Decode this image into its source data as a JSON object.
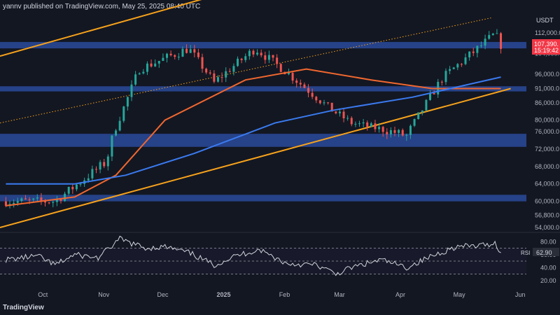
{
  "header": {
    "text": "yannv published on TradingView.com, May 25, 2025 08:40 UTC"
  },
  "footer": {
    "brand": "TradingView"
  },
  "colors": {
    "background": "#131722",
    "candle_up": "#26a69a",
    "candle_down": "#ef5350",
    "ema_orange": "#f0672f",
    "ema_blue": "#3a7af0",
    "trendline": "#f7a21b",
    "zone": "#2a4a9a",
    "rsi": "#d1d4dc",
    "price_label_bg": "#f23645"
  },
  "chart_data": [
    {
      "type": "candlestick",
      "title": "",
      "currency": "USDT",
      "x_labels": [
        "Oct",
        "Nov",
        "Dec",
        "2025",
        "Feb",
        "Mar",
        "Apr",
        "May",
        "Jun"
      ],
      "y_ticks": [
        112000,
        104000,
        96000,
        91000,
        86000,
        80000,
        76000,
        72000,
        68000,
        64000,
        60000,
        56800,
        54000
      ],
      "y_tick_labels": [
        "112,000.0",
        "104,000.0",
        "96,000.0",
        "91,000.0",
        "86,000.0",
        "80,000.0",
        "76,000.0",
        "72,000.0",
        "68,000.0",
        "64,000.0",
        "60,000.0",
        "56,800.0",
        "54,000.0"
      ],
      "last_price": 107390.0,
      "last_price_label": "107,390.",
      "countdown_label": "15:19:42",
      "support_resistance_zones": [
        {
          "low": 106000,
          "high": 108500
        },
        {
          "low": 90000,
          "high": 91800
        },
        {
          "low": 72500,
          "high": 75500
        },
        {
          "low": 60000,
          "high": 61500
        }
      ],
      "key_points": [
        {
          "date": "2024-09-15",
          "price": 60000
        },
        {
          "date": "2024-10-10",
          "price": 60000
        },
        {
          "date": "2024-11-05",
          "price": 69000
        },
        {
          "date": "2024-11-22",
          "price": 98000
        },
        {
          "date": "2024-12-17",
          "price": 106000
        },
        {
          "date": "2024-12-30",
          "price": 93000
        },
        {
          "date": "2025-01-20",
          "price": 106000
        },
        {
          "date": "2025-02-27",
          "price": 84000
        },
        {
          "date": "2025-03-10",
          "price": 79000
        },
        {
          "date": "2025-04-07",
          "price": 75000
        },
        {
          "date": "2025-04-25",
          "price": 94500
        },
        {
          "date": "2025-05-22",
          "price": 111500
        },
        {
          "date": "2025-05-25",
          "price": 107390
        }
      ],
      "moving_averages": [
        {
          "color": "#f0672f",
          "points": [
            [
              "2024-09-15",
              59000
            ],
            [
              "2024-10-20",
              61000
            ],
            [
              "2024-11-10",
              66000
            ],
            [
              "2024-12-05",
              80000
            ],
            [
              "2025-01-15",
              94000
            ],
            [
              "2025-02-15",
              98000
            ],
            [
              "2025-03-20",
              94000
            ],
            [
              "2025-04-20",
              91000
            ],
            [
              "2025-05-25",
              91000
            ]
          ]
        },
        {
          "color": "#3a7af0",
          "points": [
            [
              "2024-09-15",
              64000
            ],
            [
              "2024-10-20",
              64000
            ],
            [
              "2024-11-15",
              66000
            ],
            [
              "2024-12-20",
              71000
            ],
            [
              "2025-01-30",
              79000
            ],
            [
              "2025-03-01",
              83500
            ],
            [
              "2025-04-10",
              88000
            ],
            [
              "2025-05-25",
              95000
            ]
          ]
        }
      ],
      "trendlines": [
        {
          "style": "solid",
          "from": [
            "2024-09-12",
            54000
          ],
          "to": [
            "2025-05-30",
            91000
          ]
        },
        {
          "style": "solid",
          "from": [
            "2024-09-12",
            103000
          ],
          "to": [
            "2024-12-25",
            128000
          ]
        },
        {
          "style": "dotted",
          "from": [
            "2024-09-12",
            79000
          ],
          "to": [
            "2025-05-20",
            119000
          ]
        }
      ]
    },
    {
      "type": "line",
      "label": "RSI",
      "last_value_label": "62.90",
      "y_ticks": [
        80,
        60,
        40,
        20
      ],
      "y_tick_labels": [
        "80.00",
        "60.00",
        "40.00",
        "20.00"
      ],
      "points": [
        [
          "2024-09-15",
          52
        ],
        [
          "2024-10-01",
          58
        ],
        [
          "2024-10-10",
          44
        ],
        [
          "2024-10-20",
          60
        ],
        [
          "2024-11-01",
          55
        ],
        [
          "2024-11-12",
          84
        ],
        [
          "2024-11-25",
          70
        ],
        [
          "2024-12-05",
          72
        ],
        [
          "2024-12-18",
          62
        ],
        [
          "2024-12-30",
          44
        ],
        [
          "2025-01-10",
          58
        ],
        [
          "2025-01-22",
          68
        ],
        [
          "2025-02-05",
          46
        ],
        [
          "2025-02-20",
          44
        ],
        [
          "2025-03-02",
          30
        ],
        [
          "2025-03-10",
          40
        ],
        [
          "2025-03-25",
          52
        ],
        [
          "2025-04-07",
          40
        ],
        [
          "2025-04-20",
          58
        ],
        [
          "2025-05-02",
          72
        ],
        [
          "2025-05-15",
          74
        ],
        [
          "2025-05-22",
          78
        ],
        [
          "2025-05-25",
          63
        ]
      ]
    }
  ]
}
